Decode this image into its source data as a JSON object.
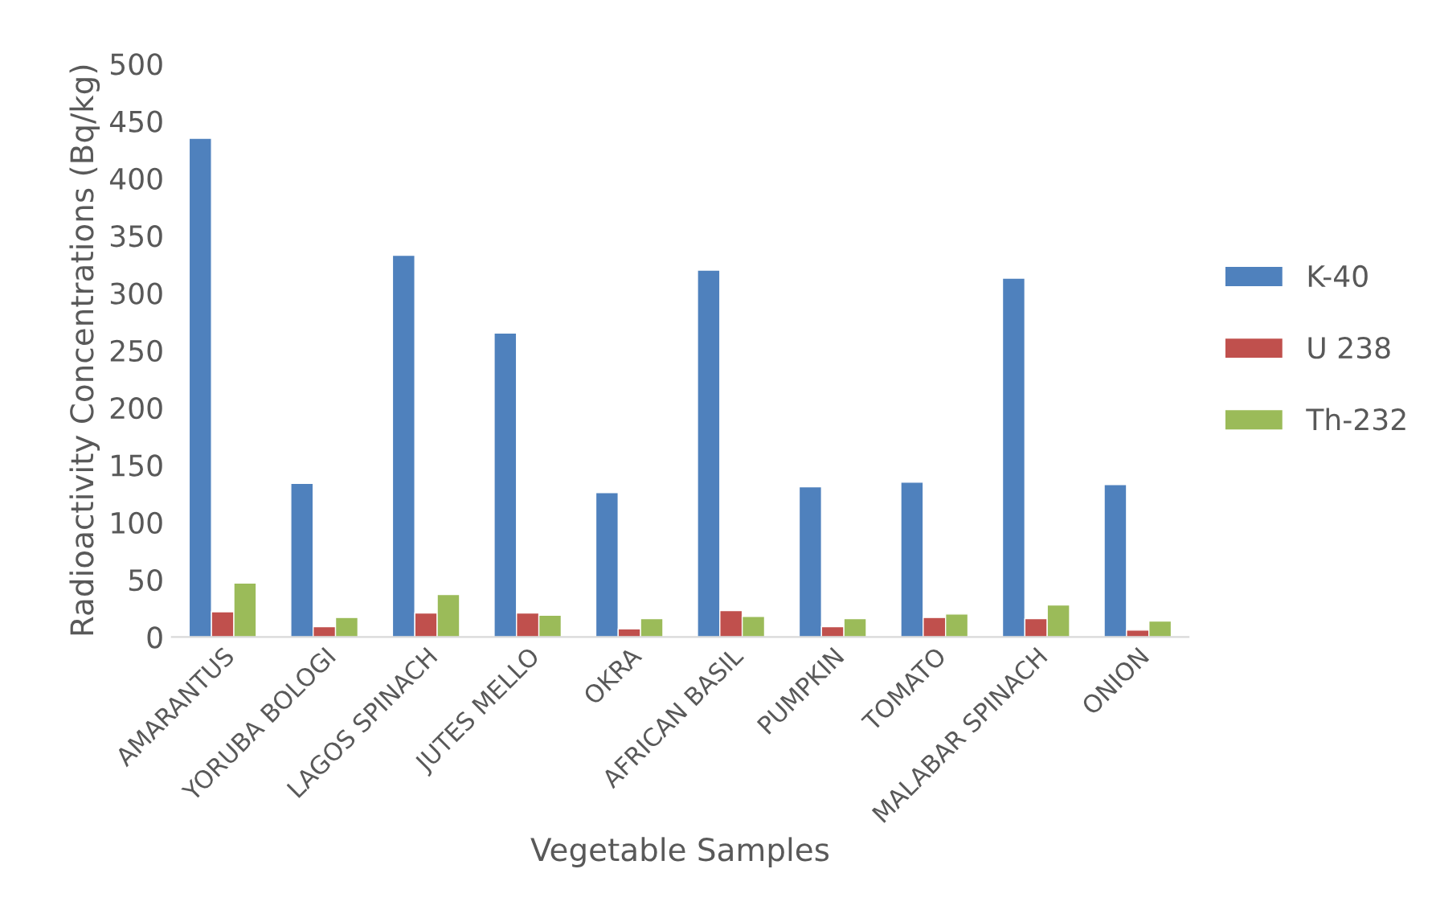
{
  "chart_data": {
    "type": "bar",
    "xlabel": "Vegetable Samples",
    "ylabel": "Radioactivity Concentrations (Bq/kg)",
    "categories": [
      "AMARANTUS",
      "YORUBA BOLOGI",
      "LAGOS SPINACH",
      "JUTES MELLO",
      "OKRA",
      "AFRICAN BASIL",
      "PUMPKIN",
      "TOMATO",
      "MALABAR SPINACH",
      "ONION"
    ],
    "series": [
      {
        "name": "K-40",
        "color": "#4f81bd",
        "values": [
          435,
          134,
          333,
          265,
          126,
          320,
          131,
          135,
          313,
          133
        ]
      },
      {
        "name": "U 238",
        "color": "#c0504d",
        "values": [
          22,
          9,
          21,
          21,
          7,
          23,
          9,
          17,
          16,
          6
        ]
      },
      {
        "name": "Th-232",
        "color": "#9bbb59",
        "values": [
          47,
          17,
          37,
          19,
          16,
          18,
          16,
          20,
          28,
          14
        ]
      }
    ],
    "ylim": [
      0,
      500
    ],
    "yticks": [
      0,
      50,
      100,
      150,
      200,
      250,
      300,
      350,
      400,
      450,
      500
    ],
    "grid": false,
    "legend": "right"
  }
}
